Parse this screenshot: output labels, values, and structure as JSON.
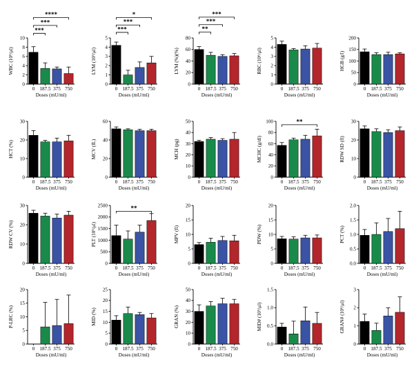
{
  "colors": {
    "0": "#000000",
    "187.5": "#1a8a4a",
    "375": "#3a53a4",
    "750": "#b3262b"
  },
  "chart_data": [
    {
      "type": "bar",
      "ylabel": "WBC (10⁹/μl)",
      "xlabel": "Doses (mU/ml)",
      "categories": [
        "0",
        "187.5",
        "375",
        "750"
      ],
      "values": [
        6.9,
        3.4,
        3.3,
        2.3
      ],
      "errors": [
        1.2,
        1.2,
        0.4,
        1.4
      ],
      "ylim": [
        0,
        10
      ],
      "yticks": [
        0,
        2,
        4,
        6,
        8,
        10
      ],
      "tick_labels": [
        "0",
        "2",
        "4",
        "6",
        "8",
        "10"
      ],
      "significance": [
        {
          "from": 0,
          "to": 1,
          "label": "***",
          "level": 11.0
        },
        {
          "from": 0,
          "to": 2,
          "label": "***",
          "level": 12.7
        },
        {
          "from": 0,
          "to": 3,
          "label": "****",
          "level": 14.4
        }
      ]
    },
    {
      "type": "bar",
      "ylabel": "LYM (10⁹/μl)",
      "xlabel": "Doses (mU/ml)",
      "categories": [
        "0",
        "187.5",
        "375",
        "750"
      ],
      "values": [
        4.2,
        1.0,
        1.8,
        2.3
      ],
      "errors": [
        0.35,
        0.5,
        0.6,
        0.7
      ],
      "ylim": [
        0,
        5
      ],
      "yticks": [
        0,
        1,
        2,
        3,
        4,
        5
      ],
      "tick_labels": [
        "0",
        "1",
        "2",
        "3",
        "4",
        "5"
      ],
      "significance": [
        {
          "from": 0,
          "to": 1,
          "label": "***",
          "level": 5.6
        },
        {
          "from": 0,
          "to": 2,
          "label": "***",
          "level": 6.4
        },
        {
          "from": 0,
          "to": 3,
          "label": "*",
          "level": 7.2
        }
      ]
    },
    {
      "type": "bar",
      "ylabel": "LYM (%)(%)",
      "xlabel": "Doses (mU/ml)",
      "categories": [
        "0",
        "187.5",
        "375",
        "750"
      ],
      "values": [
        60,
        50,
        48,
        49
      ],
      "errors": [
        5,
        5,
        3,
        4
      ],
      "ylim": [
        0,
        80
      ],
      "yticks": [
        0,
        20,
        40,
        60,
        80
      ],
      "tick_labels": [
        "0",
        "20",
        "40",
        "60",
        "80"
      ],
      "significance": [
        {
          "from": 0,
          "to": 1,
          "label": "**",
          "level": 90
        },
        {
          "from": 0,
          "to": 2,
          "label": "***",
          "level": 103
        },
        {
          "from": 0,
          "to": 3,
          "label": "***",
          "level": 116
        }
      ]
    },
    {
      "type": "bar",
      "ylabel": "RBC (10⁶/μl)",
      "xlabel": "Doses (mU/ml)",
      "categories": [
        "0",
        "187.5",
        "375",
        "750"
      ],
      "values": [
        4.3,
        3.7,
        3.8,
        3.9
      ],
      "errors": [
        0.35,
        0.15,
        0.35,
        0.5
      ],
      "ylim": [
        0,
        5
      ],
      "yticks": [
        0,
        1,
        2,
        3,
        4,
        5
      ],
      "tick_labels": [
        "0",
        "1",
        "2",
        "3",
        "4",
        "5"
      ],
      "significance": []
    },
    {
      "type": "bar",
      "ylabel": "HGB (g/l)",
      "xlabel": "Doses (mU/ml)",
      "categories": [
        "0",
        "187.5",
        "375",
        "750"
      ],
      "values": [
        140,
        128,
        128,
        131
      ],
      "errors": [
        12,
        8,
        10,
        5
      ],
      "ylim": [
        0,
        200
      ],
      "yticks": [
        0,
        50,
        100,
        150,
        200
      ],
      "tick_labels": [
        "0",
        "50",
        "100",
        "150",
        "200"
      ],
      "significance": []
    },
    {
      "type": "bar",
      "ylabel": "HCT (%)",
      "xlabel": "Doses (mU/ml)",
      "categories": [
        "0",
        "187.5",
        "375",
        "750"
      ],
      "values": [
        22.5,
        19,
        19,
        19.5
      ],
      "errors": [
        2.5,
        0.8,
        2,
        3
      ],
      "ylim": [
        0,
        30
      ],
      "yticks": [
        0,
        10,
        20,
        30
      ],
      "tick_labels": [
        "0",
        "10",
        "20",
        "30"
      ],
      "significance": []
    },
    {
      "type": "bar",
      "ylabel": "MCV (fL)",
      "xlabel": "Doses (mU/ml)",
      "categories": [
        "0",
        "187.5",
        "375",
        "750"
      ],
      "values": [
        52,
        51,
        50,
        50
      ],
      "errors": [
        2,
        1,
        1.5,
        1.5
      ],
      "ylim": [
        0,
        60
      ],
      "yticks": [
        0,
        20,
        40,
        60
      ],
      "tick_labels": [
        "0",
        "20",
        "40",
        "60"
      ],
      "significance": []
    },
    {
      "type": "bar",
      "ylabel": "MCH (pg)",
      "xlabel": "Doses (mU/ml)",
      "categories": [
        "0",
        "187.5",
        "375",
        "750"
      ],
      "values": [
        32,
        34,
        33,
        34
      ],
      "errors": [
        1,
        1.5,
        1.5,
        6
      ],
      "ylim": [
        0,
        50
      ],
      "yticks": [
        0,
        10,
        20,
        30,
        40,
        50
      ],
      "tick_labels": [
        "0",
        "10",
        "20",
        "30",
        "40",
        "50"
      ],
      "significance": []
    },
    {
      "type": "bar",
      "ylabel": "MCHC (g/dl)",
      "xlabel": "Doses (mU/ml)",
      "categories": [
        "0",
        "187.5",
        "375",
        "750"
      ],
      "values": [
        57,
        67,
        68,
        74
      ],
      "errors": [
        5,
        3,
        7,
        12
      ],
      "ylim": [
        0,
        100
      ],
      "yticks": [
        0,
        20,
        40,
        60,
        80,
        100
      ],
      "tick_labels": [
        "0",
        "20",
        "40",
        "60",
        "80",
        "100"
      ],
      "significance": [
        {
          "from": 0,
          "to": 3,
          "label": "**",
          "level": 94
        }
      ]
    },
    {
      "type": "bar",
      "ylabel": "RDW SD (fl)",
      "xlabel": "Doses (mU/ml)",
      "categories": [
        "0",
        "187.5",
        "375",
        "750"
      ],
      "values": [
        26,
        24.5,
        24,
        25
      ],
      "errors": [
        1.5,
        1.5,
        1.5,
        2
      ],
      "ylim": [
        0,
        30
      ],
      "yticks": [
        0,
        10,
        20,
        30
      ],
      "tick_labels": [
        "0",
        "10",
        "20",
        "30"
      ],
      "significance": []
    },
    {
      "type": "bar",
      "ylabel": "RDW CV (%)",
      "xlabel": "Doses (mU/ml)",
      "categories": [
        "0",
        "187.5",
        "375",
        "750"
      ],
      "values": [
        26,
        24.5,
        23.5,
        25
      ],
      "errors": [
        1.5,
        1.5,
        2,
        2
      ],
      "ylim": [
        0,
        30
      ],
      "yticks": [
        0,
        10,
        20,
        30
      ],
      "tick_labels": [
        "0",
        "10",
        "20",
        "30"
      ],
      "significance": []
    },
    {
      "type": "bar",
      "ylabel": "PLT (10⁹/μl)",
      "xlabel": "Doses (mU/ml)",
      "categories": [
        "0",
        "187.5",
        "375",
        "750"
      ],
      "values": [
        1200,
        1050,
        1350,
        1850
      ],
      "errors": [
        450,
        350,
        300,
        300
      ],
      "ylim": [
        0,
        2500
      ],
      "yticks": [
        0,
        500,
        1000,
        1500,
        2000,
        2500
      ],
      "tick_labels": [
        "0",
        "500",
        "1000",
        "1500",
        "2000",
        "2500"
      ],
      "significance": [
        {
          "from": 0,
          "to": 3,
          "label": "**",
          "level": 2250
        }
      ]
    },
    {
      "type": "bar",
      "ylabel": "MPV (fl)",
      "xlabel": "Doses (mU/ml)",
      "categories": [
        "0",
        "187.5",
        "375",
        "750"
      ],
      "values": [
        6.5,
        7.3,
        7.9,
        7.8
      ],
      "errors": [
        0.7,
        1.4,
        1.4,
        1.9
      ],
      "ylim": [
        0,
        20
      ],
      "yticks": [
        0,
        5,
        10,
        15,
        20
      ],
      "tick_labels": [
        "0",
        "5",
        "10",
        "15",
        "20"
      ],
      "significance": []
    },
    {
      "type": "bar",
      "ylabel": "PDW (%)",
      "xlabel": "Doses (mU/ml)",
      "categories": [
        "0",
        "187.5",
        "375",
        "750"
      ],
      "values": [
        8.5,
        8.4,
        8.8,
        8.8
      ],
      "errors": [
        0.8,
        0.8,
        0.9,
        1.0
      ],
      "ylim": [
        0,
        20
      ],
      "yticks": [
        0,
        5,
        10,
        15,
        20
      ],
      "tick_labels": [
        "0",
        "5",
        "10",
        "15",
        "20"
      ],
      "significance": []
    },
    {
      "type": "bar",
      "ylabel": "PCT (%)",
      "xlabel": "Doses (mU/ml)",
      "categories": [
        "0",
        "187.5",
        "375",
        "750"
      ],
      "values": [
        0.97,
        1.0,
        1.1,
        1.2
      ],
      "errors": [
        0.2,
        0.4,
        0.45,
        0.6
      ],
      "ylim": [
        0,
        2
      ],
      "yticks": [
        0,
        0.5,
        1.0,
        1.5,
        2.0
      ],
      "tick_labels": [
        "0.0",
        "0.5",
        "1.0",
        "1.5",
        "2.0"
      ],
      "significance": []
    },
    {
      "type": "bar",
      "ylabel": "P-LRC (%)",
      "xlabel": "Doses (mU/ml)",
      "categories": [
        "0",
        "187.5",
        "375",
        "750"
      ],
      "values": [
        0,
        6.3,
        6.8,
        7.5
      ],
      "errors": [
        0,
        9,
        9.6,
        10.5
      ],
      "ylim": [
        0,
        20
      ],
      "yticks": [
        0,
        5,
        10,
        15,
        20
      ],
      "tick_labels": [
        "0",
        "5",
        "10",
        "15",
        "20"
      ],
      "significance": []
    },
    {
      "type": "bar",
      "ylabel": "MID (%)",
      "xlabel": "Doses (mU/ml)",
      "categories": [
        "0",
        "187.5",
        "375",
        "750"
      ],
      "values": [
        11,
        14,
        13.5,
        12
      ],
      "errors": [
        2,
        3,
        1,
        2
      ],
      "ylim": [
        0,
        25
      ],
      "yticks": [
        0,
        5,
        10,
        15,
        20,
        25
      ],
      "tick_labels": [
        "0",
        "5",
        "10",
        "15",
        "20",
        "25"
      ],
      "significance": []
    },
    {
      "type": "bar",
      "ylabel": "GRAN (%)",
      "xlabel": "Doses (mU/ml)",
      "categories": [
        "0",
        "187.5",
        "375",
        "750"
      ],
      "values": [
        30,
        35,
        37,
        37
      ],
      "errors": [
        6,
        4,
        5,
        4
      ],
      "ylim": [
        0,
        50
      ],
      "yticks": [
        0,
        10,
        20,
        30,
        40,
        50
      ],
      "tick_labels": [
        "0",
        "10",
        "20",
        "30",
        "40",
        "50"
      ],
      "significance": []
    },
    {
      "type": "bar",
      "ylabel": "MID# (10⁹/μl)",
      "xlabel": "Doses (mU/ml)",
      "categories": [
        "0",
        "187.5",
        "375",
        "750"
      ],
      "values": [
        0.47,
        0.28,
        0.64,
        0.57
      ],
      "errors": [
        0.1,
        0.35,
        0.38,
        0.3
      ],
      "ylim": [
        0,
        1.5
      ],
      "yticks": [
        0,
        0.5,
        1.0,
        1.5
      ],
      "tick_labels": [
        "0.0",
        "0.5",
        "1.0",
        "1.5"
      ],
      "significance": []
    },
    {
      "type": "bar",
      "ylabel": "GRAN# (10⁹/μl)",
      "xlabel": "Doses (mU/ml)",
      "categories": [
        "0",
        "187.5",
        "375",
        "750"
      ],
      "values": [
        1.25,
        0.75,
        1.55,
        1.75
      ],
      "errors": [
        0.4,
        0.4,
        0.45,
        0.85
      ],
      "ylim": [
        0,
        3
      ],
      "yticks": [
        0,
        1,
        2,
        3
      ],
      "tick_labels": [
        "0",
        "1",
        "2",
        "3"
      ],
      "significance": []
    }
  ]
}
